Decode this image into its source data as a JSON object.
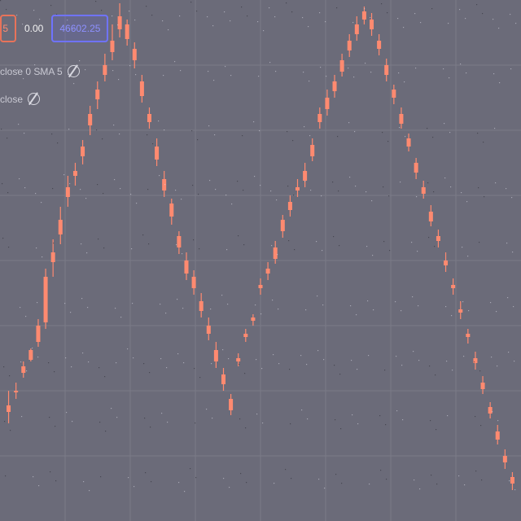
{
  "toolbar": {
    "sell_price": "5",
    "spread": "0.00",
    "buy_price": "46602.25"
  },
  "legends": [
    {
      "label": "close 0 SMA 5"
    },
    {
      "label": "close"
    }
  ],
  "colors": {
    "background": "#6b6b79",
    "bullish": "#7fe0e0",
    "bearish": "#ff8a70",
    "grid": "#7b7b88"
  },
  "chart_data": {
    "type": "candlestick",
    "series": [
      {
        "name": "",
        "values": [
          [
            142,
            134,
            120,
            160
          ],
          [
            160,
            158,
            150,
            170
          ],
          [
            190,
            182,
            176,
            196
          ],
          [
            210,
            198,
            196,
            212
          ],
          [
            240,
            220,
            214,
            248
          ],
          [
            300,
            244,
            236,
            310
          ],
          [
            330,
            318,
            300,
            346
          ],
          [
            370,
            352,
            340,
            386
          ],
          [
            410,
            398,
            386,
            424
          ],
          [
            430,
            424,
            412,
            440
          ],
          [
            460,
            448,
            438,
            468
          ],
          [
            500,
            486,
            474,
            510
          ],
          [
            530,
            518,
            506,
            540
          ],
          [
            560,
            548,
            540,
            574
          ],
          [
            590,
            576,
            566,
            610
          ],
          [
            620,
            604,
            594,
            636
          ],
          [
            610,
            592,
            584,
            616
          ],
          [
            580,
            566,
            556,
            588
          ],
          [
            540,
            522,
            514,
            548
          ],
          [
            500,
            490,
            482,
            508
          ],
          [
            460,
            444,
            436,
            470
          ],
          [
            420,
            406,
            398,
            430
          ],
          [
            390,
            374,
            364,
            396
          ],
          [
            350,
            336,
            328,
            356
          ],
          [
            320,
            304,
            296,
            330
          ],
          [
            300,
            286,
            278,
            308
          ],
          [
            270,
            258,
            250,
            280
          ],
          [
            240,
            230,
            222,
            250
          ],
          [
            210,
            196,
            188,
            220
          ],
          [
            180,
            168,
            160,
            188
          ],
          [
            150,
            136,
            130,
            156
          ],
          [
            200,
            196,
            190,
            206
          ],
          [
            230,
            226,
            220,
            236
          ],
          [
            250,
            246,
            240,
            254
          ],
          [
            290,
            286,
            278,
            298
          ],
          [
            310,
            304,
            296,
            318
          ],
          [
            336,
            322,
            316,
            344
          ],
          [
            370,
            356,
            348,
            376
          ],
          [
            392,
            382,
            374,
            400
          ],
          [
            410,
            406,
            398,
            420
          ],
          [
            430,
            418,
            410,
            440
          ],
          [
            462,
            448,
            442,
            470
          ],
          [
            500,
            490,
            482,
            508
          ],
          [
            520,
            506,
            498,
            530
          ],
          [
            540,
            528,
            520,
            548
          ],
          [
            566,
            552,
            546,
            574
          ],
          [
            590,
            578,
            570,
            598
          ],
          [
            610,
            598,
            590,
            620
          ],
          [
            626,
            616,
            610,
            632
          ],
          [
            616,
            604,
            596,
            624
          ],
          [
            590,
            580,
            572,
            598
          ],
          [
            560,
            548,
            540,
            568
          ],
          [
            530,
            520,
            512,
            536
          ],
          [
            500,
            488,
            482,
            508
          ],
          [
            470,
            460,
            454,
            476
          ],
          [
            440,
            428,
            420,
            446
          ],
          [
            410,
            402,
            396,
            418
          ],
          [
            380,
            368,
            362,
            388
          ],
          [
            350,
            344,
            336,
            358
          ],
          [
            320,
            314,
            306,
            330
          ],
          [
            290,
            286,
            278,
            298
          ],
          [
            260,
            256,
            248,
            270
          ],
          [
            230,
            226,
            218,
            236
          ],
          [
            200,
            194,
            186,
            208
          ],
          [
            170,
            162,
            156,
            178
          ],
          [
            140,
            132,
            126,
            146
          ],
          [
            110,
            100,
            94,
            118
          ],
          [
            80,
            72,
            64,
            88
          ],
          [
            54,
            46,
            38,
            60
          ]
        ]
      }
    ]
  }
}
